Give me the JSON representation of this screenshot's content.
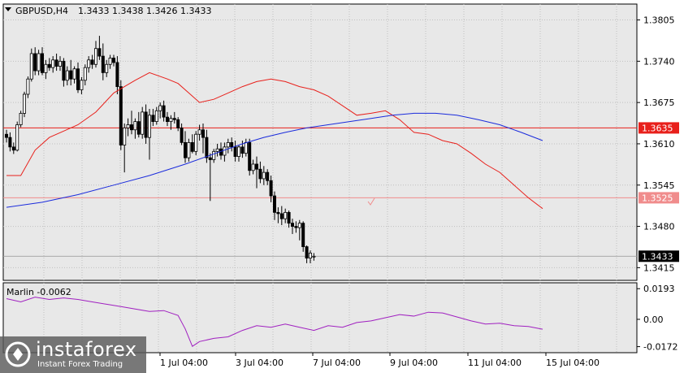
{
  "header": {
    "symbol": "GBPUSD,H4",
    "ohlc": "1.3433 1.3438 1.3426 1.3433"
  },
  "indicator": {
    "label": "Marlin -0.0062",
    "levels": [
      "0.0193",
      "0.00",
      "-0.0172"
    ]
  },
  "price_axis": {
    "ticks": [
      "1.3805",
      "1.3740",
      "1.3675",
      "1.3610",
      "1.3545",
      "1.3480",
      "1.3415"
    ],
    "markers": [
      {
        "label": "1.3635",
        "value": 1.3635,
        "color": "#e8201b"
      },
      {
        "label": "1.3525",
        "value": 1.3525,
        "color": "#f08c8c"
      },
      {
        "label": "1.3433",
        "value": 1.3433,
        "color": "#000000"
      }
    ]
  },
  "time_axis": {
    "ticks": [
      "1 Jul 04:00",
      "3 Jul 04:00",
      "7 Jul 04:00",
      "9 Jul 04:00",
      "11 Jul 04:00",
      "15 Jul 04:00"
    ]
  },
  "logo": {
    "name": "instaforex",
    "tagline": "Instant Forex Trading",
    "icon": "instaforex-logo-icon"
  },
  "chart_data": {
    "type": "candlestick",
    "ylim": [
      1.3395,
      1.383
    ],
    "horizontal_lines": [
      1.3635,
      1.3525
    ],
    "candles": [
      [
        1.3625,
        1.3632,
        1.3612,
        1.362
      ],
      [
        1.362,
        1.3628,
        1.3598,
        1.3605
      ],
      [
        1.3605,
        1.3612,
        1.3594,
        1.36
      ],
      [
        1.36,
        1.3645,
        1.3598,
        1.364
      ],
      [
        1.364,
        1.3662,
        1.3636,
        1.3658
      ],
      [
        1.3658,
        1.3692,
        1.3652,
        1.3688
      ],
      [
        1.3688,
        1.3716,
        1.3682,
        1.3712
      ],
      [
        1.3712,
        1.376,
        1.3708,
        1.3752
      ],
      [
        1.3752,
        1.3762,
        1.3718,
        1.3725
      ],
      [
        1.3725,
        1.3758,
        1.3718,
        1.3752
      ],
      [
        1.3752,
        1.3762,
        1.3718,
        1.3722
      ],
      [
        1.3722,
        1.3742,
        1.3712,
        1.3735
      ],
      [
        1.3735,
        1.3745,
        1.3725,
        1.373
      ],
      [
        1.373,
        1.3748,
        1.3722,
        1.3742
      ],
      [
        1.3742,
        1.3752,
        1.3725,
        1.3732
      ],
      [
        1.3732,
        1.3748,
        1.3725,
        1.374
      ],
      [
        1.374,
        1.3745,
        1.37,
        1.371
      ],
      [
        1.371,
        1.3732,
        1.3702,
        1.3725
      ],
      [
        1.3725,
        1.3742,
        1.3702,
        1.3712
      ],
      [
        1.3712,
        1.3732,
        1.3705,
        1.3728
      ],
      [
        1.3728,
        1.3738,
        1.369,
        1.3695
      ],
      [
        1.3695,
        1.3715,
        1.3688,
        1.371
      ],
      [
        1.371,
        1.3735,
        1.3702,
        1.373
      ],
      [
        1.373,
        1.3748,
        1.3722,
        1.3742
      ],
      [
        1.3742,
        1.375,
        1.3728,
        1.3735
      ],
      [
        1.3735,
        1.3772,
        1.373,
        1.376
      ],
      [
        1.376,
        1.378,
        1.3742,
        1.3748
      ],
      [
        1.3748,
        1.3768,
        1.371,
        1.3722
      ],
      [
        1.3722,
        1.3742,
        1.3715,
        1.3735
      ],
      [
        1.3735,
        1.375,
        1.3728,
        1.3745
      ],
      [
        1.3745,
        1.375,
        1.3732,
        1.3738
      ],
      [
        1.3738,
        1.3748,
        1.3688,
        1.37
      ],
      [
        1.37,
        1.371,
        1.36,
        1.3608
      ],
      [
        1.3608,
        1.3642,
        1.3565,
        1.3635
      ],
      [
        1.3635,
        1.365,
        1.3622,
        1.364
      ],
      [
        1.364,
        1.3662,
        1.3625,
        1.3632
      ],
      [
        1.3632,
        1.365,
        1.3618,
        1.3645
      ],
      [
        1.3645,
        1.366,
        1.362,
        1.3625
      ],
      [
        1.3625,
        1.3668,
        1.3618,
        1.366
      ],
      [
        1.366,
        1.3672,
        1.361,
        1.362
      ],
      [
        1.362,
        1.3665,
        1.3585,
        1.3655
      ],
      [
        1.3655,
        1.3665,
        1.3638,
        1.3645
      ],
      [
        1.3645,
        1.3668,
        1.364,
        1.3662
      ],
      [
        1.3662,
        1.3675,
        1.365,
        1.367
      ],
      [
        1.367,
        1.3678,
        1.3645,
        1.3652
      ],
      [
        1.3652,
        1.366,
        1.3638,
        1.3645
      ],
      [
        1.3645,
        1.3655,
        1.3632,
        1.365
      ],
      [
        1.365,
        1.366,
        1.3642,
        1.3648
      ],
      [
        1.3648,
        1.3652,
        1.363,
        1.3635
      ],
      [
        1.3635,
        1.3642,
        1.3608,
        1.3612
      ],
      [
        1.3612,
        1.363,
        1.358,
        1.3588
      ],
      [
        1.3588,
        1.3618,
        1.3582,
        1.3612
      ],
      [
        1.3612,
        1.3625,
        1.3595,
        1.3598
      ],
      [
        1.3598,
        1.363,
        1.3592,
        1.3625
      ],
      [
        1.3625,
        1.364,
        1.3615,
        1.3632
      ],
      [
        1.3632,
        1.3642,
        1.3595,
        1.362
      ],
      [
        1.362,
        1.3632,
        1.358,
        1.3588
      ],
      [
        1.3588,
        1.3595,
        1.352,
        1.3585
      ],
      [
        1.3585,
        1.3602,
        1.358,
        1.3598
      ],
      [
        1.3598,
        1.361,
        1.359,
        1.3602
      ],
      [
        1.3602,
        1.3612,
        1.3585,
        1.3592
      ],
      [
        1.3592,
        1.3612,
        1.3582,
        1.3605
      ],
      [
        1.3605,
        1.3618,
        1.3595,
        1.3612
      ],
      [
        1.3612,
        1.362,
        1.3598,
        1.3605
      ],
      [
        1.3605,
        1.3615,
        1.3582,
        1.359
      ],
      [
        1.359,
        1.3608,
        1.3582,
        1.3605
      ],
      [
        1.3605,
        1.3615,
        1.3588,
        1.3595
      ],
      [
        1.3595,
        1.3618,
        1.359,
        1.3612
      ],
      [
        1.3612,
        1.3618,
        1.356,
        1.3568
      ],
      [
        1.3568,
        1.3585,
        1.3562,
        1.3578
      ],
      [
        1.3578,
        1.359,
        1.354,
        1.357
      ],
      [
        1.357,
        1.3582,
        1.3548,
        1.3555
      ],
      [
        1.3555,
        1.3575,
        1.3545,
        1.3565
      ],
      [
        1.3565,
        1.357,
        1.3545,
        1.3552
      ],
      [
        1.3552,
        1.356,
        1.3518,
        1.3528
      ],
      [
        1.3528,
        1.3535,
        1.349,
        1.3502
      ],
      [
        1.3502,
        1.351,
        1.3485,
        1.35
      ],
      [
        1.35,
        1.3512,
        1.3482,
        1.3492
      ],
      [
        1.3492,
        1.3508,
        1.3485,
        1.3502
      ],
      [
        1.3502,
        1.3505,
        1.3478,
        1.3485
      ],
      [
        1.3485,
        1.3492,
        1.3468,
        1.348
      ],
      [
        1.348,
        1.3488,
        1.347,
        1.3478
      ],
      [
        1.3478,
        1.349,
        1.3458,
        1.3485
      ],
      [
        1.3485,
        1.3488,
        1.344,
        1.3448
      ],
      [
        1.3448,
        1.345,
        1.3422,
        1.343
      ],
      [
        1.343,
        1.3442,
        1.3422,
        1.3438
      ],
      [
        1.3433,
        1.3438,
        1.3426,
        1.3433
      ]
    ],
    "upper_band": [
      [
        0,
        1.356
      ],
      [
        4,
        1.356
      ],
      [
        8,
        1.36
      ],
      [
        12,
        1.362
      ],
      [
        16,
        1.363
      ],
      [
        20,
        1.364
      ],
      [
        25,
        1.366
      ],
      [
        30,
        1.369
      ],
      [
        33,
        1.37
      ],
      [
        36,
        1.371
      ],
      [
        40,
        1.3722
      ],
      [
        45,
        1.3712
      ],
      [
        48,
        1.3705
      ],
      [
        51,
        1.369
      ],
      [
        54,
        1.3675
      ],
      [
        58,
        1.368
      ],
      [
        62,
        1.369
      ],
      [
        66,
        1.37
      ],
      [
        70,
        1.3708
      ],
      [
        74,
        1.3712
      ],
      [
        78,
        1.3708
      ],
      [
        82,
        1.37
      ],
      [
        86,
        1.3695
      ],
      [
        90,
        1.3685
      ],
      [
        94,
        1.367
      ],
      [
        98,
        1.3655
      ],
      [
        102,
        1.3658
      ],
      [
        106,
        1.3662
      ],
      [
        110,
        1.3648
      ],
      [
        114,
        1.3628
      ],
      [
        118,
        1.3625
      ],
      [
        122,
        1.3615
      ],
      [
        126,
        1.361
      ],
      [
        130,
        1.3595
      ],
      [
        134,
        1.3578
      ],
      [
        138,
        1.3565
      ],
      [
        142,
        1.3545
      ],
      [
        146,
        1.3525
      ],
      [
        150,
        1.3508
      ]
    ],
    "middle_ma": [
      [
        0,
        1.351
      ],
      [
        10,
        1.3518
      ],
      [
        20,
        1.353
      ],
      [
        30,
        1.3545
      ],
      [
        40,
        1.356
      ],
      [
        50,
        1.3578
      ],
      [
        60,
        1.3598
      ],
      [
        66,
        1.361
      ],
      [
        72,
        1.362
      ],
      [
        78,
        1.3628
      ],
      [
        84,
        1.3635
      ],
      [
        90,
        1.364
      ],
      [
        96,
        1.3645
      ],
      [
        102,
        1.365
      ],
      [
        108,
        1.3655
      ],
      [
        114,
        1.3658
      ],
      [
        120,
        1.3658
      ],
      [
        126,
        1.3655
      ],
      [
        132,
        1.3648
      ],
      [
        138,
        1.364
      ],
      [
        144,
        1.3628
      ],
      [
        150,
        1.3615
      ]
    ],
    "marlin": [
      [
        0,
        0.013
      ],
      [
        4,
        0.011
      ],
      [
        8,
        0.014
      ],
      [
        12,
        0.0125
      ],
      [
        16,
        0.0135
      ],
      [
        20,
        0.0125
      ],
      [
        24,
        0.011
      ],
      [
        28,
        0.0095
      ],
      [
        32,
        0.008
      ],
      [
        36,
        0.0065
      ],
      [
        40,
        0.005
      ],
      [
        44,
        0.0055
      ],
      [
        48,
        0.0025
      ],
      [
        50,
        -0.006
      ],
      [
        52,
        -0.017
      ],
      [
        54,
        -0.014
      ],
      [
        58,
        -0.012
      ],
      [
        62,
        -0.011
      ],
      [
        66,
        -0.007
      ],
      [
        70,
        -0.004
      ],
      [
        74,
        -0.005
      ],
      [
        78,
        -0.003
      ],
      [
        82,
        -0.005
      ],
      [
        86,
        -0.007
      ],
      [
        90,
        -0.004
      ],
      [
        94,
        -0.005
      ],
      [
        98,
        -0.002
      ],
      [
        102,
        -0.001
      ],
      [
        106,
        0.001
      ],
      [
        110,
        0.003
      ],
      [
        114,
        0.002
      ],
      [
        118,
        0.0045
      ],
      [
        122,
        0.004
      ],
      [
        126,
        0.0015
      ],
      [
        130,
        -0.001
      ],
      [
        134,
        -0.003
      ],
      [
        138,
        -0.0025
      ],
      [
        142,
        -0.004
      ],
      [
        146,
        -0.0045
      ],
      [
        150,
        -0.0062
      ]
    ],
    "marlin_ylim": [
      -0.021,
      0.023
    ],
    "colors": {
      "bull": "#ffffff",
      "bear": "#000000",
      "upper_band": "#e8201b",
      "middle_ma": "#1a2bdc",
      "marlin": "#a020c0",
      "grid": "#c0c0c0"
    }
  }
}
